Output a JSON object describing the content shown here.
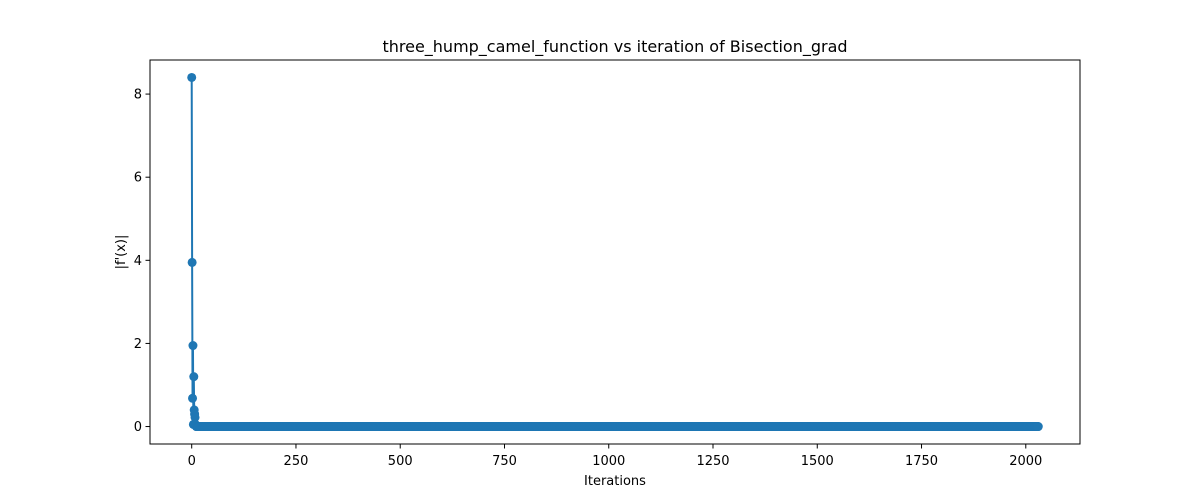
{
  "chart_data": {
    "type": "line",
    "title": "three_hump_camel_function vs iteration of Bisection_grad",
    "xlabel": "Iterations",
    "ylabel": "|f'(x)|",
    "xlim": [
      -100,
      2130
    ],
    "ylim": [
      -0.42,
      8.82
    ],
    "xticks": [
      0,
      250,
      500,
      750,
      1000,
      1250,
      1500,
      1750,
      2000
    ],
    "xtick_labels": [
      "0",
      "250",
      "500",
      "750",
      "1000",
      "1250",
      "1500",
      "1750",
      "2000"
    ],
    "yticks": [
      0,
      2,
      4,
      6,
      8
    ],
    "ytick_labels": [
      "0",
      "2",
      "4",
      "6",
      "8"
    ],
    "grid": false,
    "marker": "circle",
    "series": [
      {
        "color": "#1f77b4",
        "x": [
          0,
          1,
          2,
          3,
          4,
          5,
          6,
          7,
          8,
          9,
          10,
          2030
        ],
        "y": [
          8.4,
          3.95,
          0.68,
          1.95,
          0.05,
          1.2,
          0.4,
          0.3,
          0.22,
          0.05,
          0.02,
          0.0
        ]
      }
    ]
  }
}
